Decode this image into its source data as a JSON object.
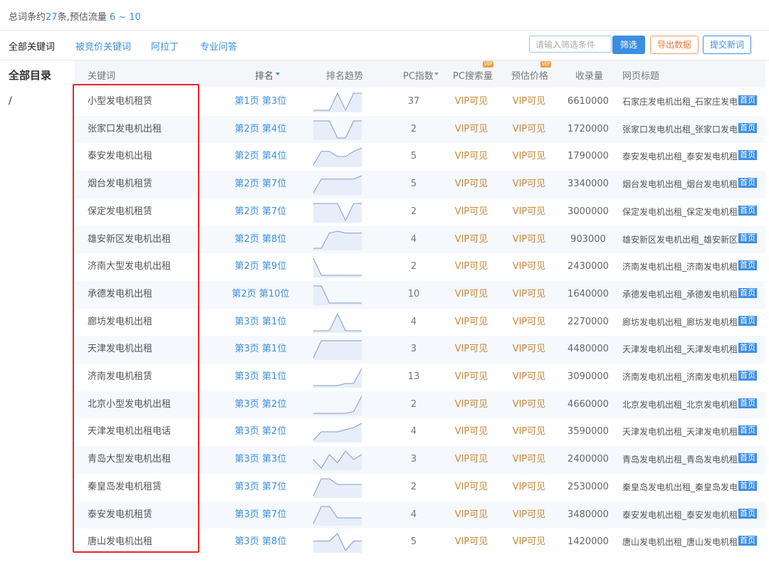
{
  "summary": {
    "prefix": "总词条约",
    "count": "27",
    "middle": "条,预估流量",
    "traffic": "6 ~ 10"
  },
  "tabs": [
    "全部关键词",
    "被竞价关键词",
    "阿拉丁",
    "专业问答"
  ],
  "toolbar": {
    "placeholder": "请输入筛选条件",
    "filter": "筛选",
    "export": "导出数据",
    "submit": "提交新词"
  },
  "sidebar": {
    "title": "全部目录",
    "item": "/"
  },
  "table": {
    "headers": [
      "关键词",
      "排名",
      "排名趋势",
      "PC指数",
      "PC搜索量",
      "预估价格",
      "收录量",
      "网页标题"
    ],
    "vip_badge": "VIP",
    "rows": [
      {
        "keyword": "小型发电机租赁",
        "rank": "第1页 第3位",
        "trend": [
          0,
          0,
          0,
          10,
          0,
          10,
          10
        ],
        "pc_index": 37,
        "pc_search": "VIP可见",
        "price": "VIP可见",
        "indexed": 6610000,
        "title": "石家庄发电机出租_石家庄发电",
        "badge": "首页"
      },
      {
        "keyword": "张家口发电机出租",
        "rank": "第2页 第4位",
        "trend": [
          8,
          8,
          8,
          3,
          3,
          8,
          8
        ],
        "pc_index": 2,
        "pc_search": "VIP可见",
        "price": "VIP可见",
        "indexed": 1720000,
        "title": "张家口发电机出租_张家口发电",
        "badge": "首页"
      },
      {
        "keyword": "泰安发电机出租",
        "rank": "第2页 第4位",
        "trend": [
          0,
          8,
          8,
          5,
          5,
          8,
          10
        ],
        "pc_index": 5,
        "pc_search": "VIP可见",
        "price": "VIP可见",
        "indexed": 1790000,
        "title": "泰安发电机出租_泰安发电机租",
        "badge": "首页"
      },
      {
        "keyword": "烟台发电机租赁",
        "rank": "第2页 第7位",
        "trend": [
          0,
          8,
          8,
          8,
          8,
          8,
          10
        ],
        "pc_index": 5,
        "pc_search": "VIP可见",
        "price": "VIP可见",
        "indexed": 3340000,
        "title": "烟台发电机出租_烟台发电机租",
        "badge": "首页"
      },
      {
        "keyword": "保定发电机租赁",
        "rank": "第2页 第7位",
        "trend": [
          8,
          8,
          8,
          8,
          6,
          8,
          8
        ],
        "pc_index": 2,
        "pc_search": "VIP可见",
        "price": "VIP可见",
        "indexed": 3000000,
        "title": "保定发电机出租_保定发电机租",
        "badge": "首页"
      },
      {
        "keyword": "雄安新区发电机出租",
        "rank": "第2页 第8位",
        "trend": [
          0,
          0,
          8,
          9,
          8,
          8,
          8
        ],
        "pc_index": 4,
        "pc_search": "VIP可见",
        "price": "VIP可见",
        "indexed": 903000,
        "title": "雄安新区发电机出租_雄安新区",
        "badge": "首页"
      },
      {
        "keyword": "济南大型发电机出租",
        "rank": "第2页 第9位",
        "trend": [
          8,
          6,
          6,
          6,
          6,
          6,
          6
        ],
        "pc_index": 2,
        "pc_search": "VIP可见",
        "price": "VIP可见",
        "indexed": 2430000,
        "title": "济南发电机出租_济南发电机租",
        "badge": "首页"
      },
      {
        "keyword": "承德发电机出租",
        "rank": "第2页 第10位",
        "trend": [
          8,
          8,
          6,
          6,
          6,
          6,
          6
        ],
        "pc_index": 10,
        "pc_search": "VIP可见",
        "price": "VIP可见",
        "indexed": 1640000,
        "title": "承德发电机出租_承德发电机租",
        "badge": "首页"
      },
      {
        "keyword": "廊坊发电机出租",
        "rank": "第3页 第1位",
        "trend": [
          6,
          6,
          6,
          8,
          6,
          6,
          6
        ],
        "pc_index": 4,
        "pc_search": "VIP可见",
        "price": "VIP可见",
        "indexed": 2270000,
        "title": "廊坊发电机出租_廊坊发电机租",
        "badge": "首页"
      },
      {
        "keyword": "天津发电机出租",
        "rank": "第3页 第1位",
        "trend": [
          0,
          8,
          8,
          8,
          8,
          8,
          8
        ],
        "pc_index": 3,
        "pc_search": "VIP可见",
        "price": "VIP可见",
        "indexed": 4480000,
        "title": "天津发电机出租_天津发电机租",
        "badge": "首页"
      },
      {
        "keyword": "济南发电机租赁",
        "rank": "第3页 第1位",
        "trend": [
          2,
          2,
          2,
          2,
          3,
          3,
          10
        ],
        "pc_index": 13,
        "pc_search": "VIP可见",
        "price": "VIP可见",
        "indexed": 3090000,
        "title": "济南发电机出租_济南发电机租",
        "badge": "首页"
      },
      {
        "keyword": "北京小型发电机出租",
        "rank": "第3页 第2位",
        "trend": [
          0,
          0,
          0,
          0,
          0,
          1,
          10
        ],
        "pc_index": 2,
        "pc_search": "VIP可见",
        "price": "VIP可见",
        "indexed": 4660000,
        "title": "北京发电机出租_北京发电机租",
        "badge": "首页"
      },
      {
        "keyword": "天津发电机出租电话",
        "rank": "第3页 第2位",
        "trend": [
          2,
          6,
          6,
          6,
          7,
          8,
          10
        ],
        "pc_index": 4,
        "pc_search": "VIP可见",
        "price": "VIP可见",
        "indexed": 3590000,
        "title": "天津发电机出租_天津发电机租",
        "badge": "首页"
      },
      {
        "keyword": "青岛大型发电机出租",
        "rank": "第3页 第3位",
        "trend": [
          5,
          0,
          8,
          3,
          10,
          5,
          8
        ],
        "pc_index": 3,
        "pc_search": "VIP可见",
        "price": "VIP可见",
        "indexed": 2400000,
        "title": "青岛发电机出租_青岛发电机租",
        "badge": "首页"
      },
      {
        "keyword": "秦皇岛发电机租赁",
        "rank": "第3页 第7位",
        "trend": [
          2,
          8,
          8,
          6,
          6,
          6,
          6
        ],
        "pc_index": 2,
        "pc_search": "VIP可见",
        "price": "VIP可见",
        "indexed": 2530000,
        "title": "秦皇岛发电机出租_秦皇岛发电",
        "badge": "首页"
      },
      {
        "keyword": "泰安发电机租赁",
        "rank": "第3页 第7位",
        "trend": [
          2,
          8,
          8,
          4,
          4,
          4,
          4
        ],
        "pc_index": 4,
        "pc_search": "VIP可见",
        "price": "VIP可见",
        "indexed": 3480000,
        "title": "泰安发电机出租_泰安发电机租",
        "badge": "首页"
      },
      {
        "keyword": "唐山发电机出租",
        "rank": "第3页 第8位",
        "trend": [
          5,
          5,
          5,
          9,
          0,
          5,
          5
        ],
        "pc_index": 5,
        "pc_search": "VIP可见",
        "price": "VIP可见",
        "indexed": 1420000,
        "title": "唐山发电机出租_唐山发电机租",
        "badge": "首页"
      }
    ]
  }
}
